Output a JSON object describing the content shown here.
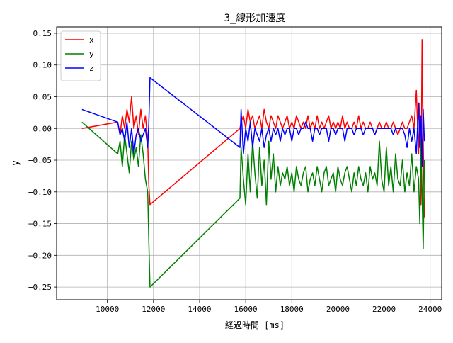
{
  "chart_data": {
    "type": "line",
    "title": "3_線形加速度",
    "xlabel": "経過時間 [ms]",
    "ylabel": "y",
    "xlim": [
      7800,
      24500
    ],
    "ylim": [
      -0.27,
      0.16
    ],
    "xticks": [
      10000,
      12000,
      14000,
      16000,
      18000,
      20000,
      22000,
      24000
    ],
    "yticks": [
      0.15,
      0.1,
      0.05,
      0.0,
      -0.05,
      -0.1,
      -0.15,
      -0.2,
      -0.25
    ],
    "ytick_labels": [
      "0.15",
      "0.10",
      "0.05",
      "0.00",
      "−0.05",
      "−0.10",
      "−0.15",
      "−0.20",
      "−0.25"
    ],
    "grid": true,
    "legend_position": "top-left",
    "series": [
      {
        "name": "x",
        "color": "#ff0000",
        "x": [
          8900,
          10450,
          10550,
          10650,
          10750,
          10850,
          10950,
          11050,
          11150,
          11250,
          11350,
          11450,
          11550,
          11650,
          11750,
          11800,
          11850,
          15750,
          15800,
          15900,
          16000,
          16100,
          16200,
          16300,
          16400,
          16500,
          16600,
          16700,
          16800,
          16900,
          17000,
          17100,
          17200,
          17300,
          17400,
          17500,
          17600,
          17700,
          17800,
          17900,
          18000,
          18100,
          18200,
          18300,
          18400,
          18500,
          18600,
          18700,
          18800,
          18900,
          19000,
          19100,
          19200,
          19300,
          19400,
          19500,
          19600,
          19700,
          19800,
          19900,
          20000,
          20100,
          20200,
          20300,
          20400,
          20500,
          20600,
          20700,
          20800,
          20900,
          21000,
          21100,
          21200,
          21300,
          21400,
          21500,
          21600,
          21700,
          21800,
          21900,
          22000,
          22100,
          22200,
          22300,
          22400,
          22500,
          22600,
          22700,
          22800,
          22900,
          23000,
          23100,
          23200,
          23300,
          23400,
          23500,
          23550,
          23600,
          23650,
          23700,
          23750
        ],
        "y": [
          0.0,
          0.01,
          -0.01,
          0.02,
          0.0,
          0.03,
          0.01,
          0.05,
          0.0,
          0.02,
          -0.01,
          0.03,
          0.0,
          0.02,
          -0.02,
          -0.09,
          -0.12,
          0.0,
          0.01,
          0.02,
          0.0,
          0.03,
          0.01,
          0.02,
          0.0,
          0.01,
          0.02,
          0.0,
          0.03,
          0.01,
          0.0,
          0.02,
          0.01,
          0.0,
          0.02,
          0.01,
          0.0,
          0.01,
          0.02,
          0.0,
          0.01,
          0.0,
          0.02,
          0.01,
          0.0,
          0.01,
          0.0,
          0.02,
          0.0,
          0.01,
          0.0,
          0.02,
          0.0,
          0.01,
          0.0,
          0.01,
          0.02,
          0.0,
          0.01,
          0.0,
          0.01,
          0.0,
          0.02,
          0.0,
          0.01,
          0.0,
          0.0,
          0.01,
          0.0,
          0.02,
          0.0,
          0.01,
          0.0,
          0.0,
          0.01,
          0.0,
          -0.01,
          0.0,
          0.01,
          0.0,
          0.0,
          0.01,
          0.0,
          0.0,
          0.01,
          0.0,
          -0.01,
          0.0,
          0.01,
          0.0,
          0.0,
          0.01,
          0.02,
          0.0,
          0.06,
          -0.04,
          0.04,
          -0.12,
          0.14,
          -0.02,
          -0.14
        ]
      },
      {
        "name": "y",
        "color": "#008000",
        "x": [
          8900,
          10450,
          10550,
          10650,
          10750,
          10850,
          10950,
          11050,
          11150,
          11250,
          11350,
          11450,
          11550,
          11650,
          11750,
          11800,
          11850,
          15750,
          15800,
          15900,
          16000,
          16100,
          16200,
          16300,
          16400,
          16500,
          16600,
          16700,
          16800,
          16900,
          17000,
          17100,
          17200,
          17300,
          17400,
          17500,
          17600,
          17700,
          17800,
          17900,
          18000,
          18100,
          18200,
          18300,
          18400,
          18500,
          18600,
          18700,
          18800,
          18900,
          19000,
          19100,
          19200,
          19300,
          19400,
          19500,
          19600,
          19700,
          19800,
          19900,
          20000,
          20100,
          20200,
          20300,
          20400,
          20500,
          20600,
          20700,
          20800,
          20900,
          21000,
          21100,
          21200,
          21300,
          21400,
          21500,
          21600,
          21700,
          21800,
          21900,
          22000,
          22100,
          22200,
          22300,
          22400,
          22500,
          22600,
          22700,
          22800,
          22900,
          23000,
          23100,
          23200,
          23300,
          23400,
          23500,
          23550,
          23600,
          23650,
          23700,
          23750
        ],
        "y": [
          0.01,
          -0.04,
          -0.02,
          -0.06,
          -0.01,
          -0.04,
          -0.07,
          -0.02,
          -0.05,
          -0.03,
          -0.06,
          -0.01,
          -0.04,
          -0.08,
          -0.1,
          -0.18,
          -0.25,
          -0.11,
          -0.03,
          -0.08,
          -0.12,
          -0.04,
          -0.1,
          -0.02,
          -0.07,
          -0.11,
          -0.03,
          -0.09,
          -0.05,
          -0.12,
          -0.02,
          -0.08,
          -0.04,
          -0.1,
          -0.06,
          -0.09,
          -0.07,
          -0.08,
          -0.06,
          -0.09,
          -0.07,
          -0.1,
          -0.06,
          -0.08,
          -0.09,
          -0.07,
          -0.06,
          -0.1,
          -0.08,
          -0.07,
          -0.09,
          -0.06,
          -0.08,
          -0.1,
          -0.07,
          -0.06,
          -0.09,
          -0.08,
          -0.07,
          -0.1,
          -0.06,
          -0.08,
          -0.09,
          -0.07,
          -0.06,
          -0.08,
          -0.1,
          -0.07,
          -0.09,
          -0.06,
          -0.08,
          -0.09,
          -0.07,
          -0.1,
          -0.06,
          -0.08,
          -0.07,
          -0.09,
          -0.02,
          -0.08,
          -0.1,
          -0.03,
          -0.09,
          -0.06,
          -0.1,
          -0.04,
          -0.08,
          -0.09,
          -0.05,
          -0.1,
          -0.07,
          -0.09,
          -0.04,
          -0.1,
          -0.06,
          -0.08,
          -0.15,
          -0.02,
          -0.1,
          -0.19,
          -0.05
        ]
      },
      {
        "name": "z",
        "color": "#0000ff",
        "x": [
          8900,
          10450,
          10550,
          10650,
          10750,
          10850,
          10950,
          11050,
          11150,
          11250,
          11350,
          11450,
          11550,
          11650,
          11750,
          11800,
          11850,
          15750,
          15800,
          15900,
          16000,
          16100,
          16200,
          16300,
          16400,
          16500,
          16600,
          16700,
          16800,
          16900,
          17000,
          17100,
          17200,
          17300,
          17400,
          17500,
          17600,
          17700,
          17800,
          17900,
          18000,
          18100,
          18200,
          18300,
          18400,
          18500,
          18600,
          18700,
          18800,
          18900,
          19000,
          19100,
          19200,
          19300,
          19400,
          19500,
          19600,
          19700,
          19800,
          19900,
          20000,
          20100,
          20200,
          20300,
          20400,
          20500,
          20600,
          20700,
          20800,
          20900,
          21000,
          21100,
          21200,
          21300,
          21400,
          21500,
          21600,
          21700,
          21800,
          21900,
          22000,
          22100,
          22200,
          22300,
          22400,
          22500,
          22600,
          22700,
          22800,
          22900,
          23000,
          23100,
          23200,
          23300,
          23400,
          23500,
          23550,
          23600,
          23650,
          23700,
          23750
        ],
        "y": [
          0.03,
          0.01,
          -0.01,
          0.0,
          -0.02,
          0.01,
          -0.03,
          0.0,
          -0.04,
          -0.01,
          0.0,
          -0.02,
          -0.01,
          0.0,
          -0.03,
          0.01,
          0.08,
          -0.03,
          0.03,
          -0.04,
          0.0,
          -0.02,
          0.01,
          -0.03,
          0.0,
          -0.01,
          -0.02,
          0.0,
          -0.03,
          -0.01,
          0.0,
          -0.02,
          0.0,
          -0.01,
          0.0,
          -0.02,
          0.0,
          -0.01,
          0.0,
          0.0,
          -0.02,
          0.0,
          0.0,
          -0.01,
          0.0,
          0.0,
          0.01,
          0.0,
          0.0,
          -0.02,
          0.0,
          0.0,
          -0.01,
          0.0,
          0.0,
          0.0,
          -0.02,
          0.0,
          0.0,
          -0.01,
          0.0,
          0.0,
          0.0,
          -0.02,
          0.0,
          0.0,
          0.0,
          -0.01,
          0.0,
          0.0,
          0.0,
          -0.01,
          0.0,
          0.0,
          0.0,
          0.0,
          -0.01,
          0.0,
          0.0,
          0.0,
          0.0,
          0.0,
          0.0,
          0.0,
          -0.01,
          0.0,
          0.0,
          0.0,
          0.0,
          -0.01,
          -0.03,
          0.0,
          -0.02,
          0.0,
          -0.04,
          0.04,
          -0.03,
          0.02,
          -0.06,
          0.03,
          -0.02
        ]
      }
    ]
  }
}
